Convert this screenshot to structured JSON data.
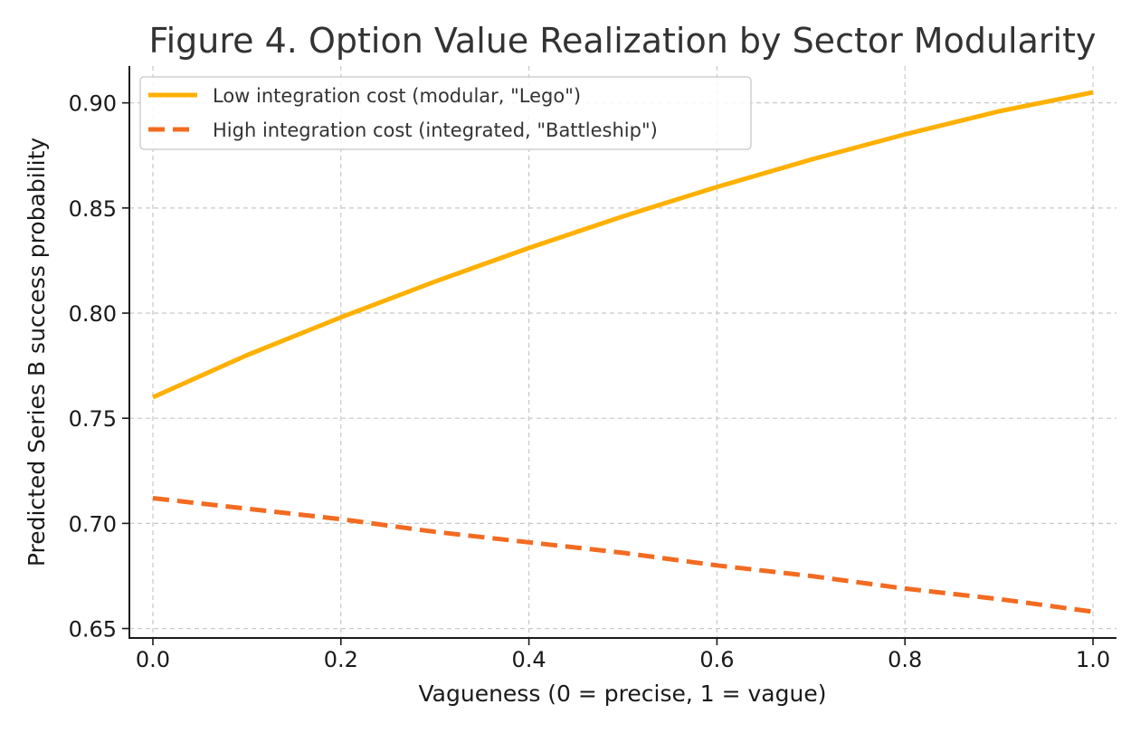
{
  "chart_data": {
    "type": "line",
    "title": "Figure 4. Option Value Realization by Sector Modularity",
    "xlabel": "Vagueness (0 = precise, 1 = vague)",
    "ylabel": "Predicted Series B success probability",
    "xlim": [
      -0.025,
      1.025
    ],
    "ylim": [
      0.6455,
      0.9175
    ],
    "x_ticks": [
      0.0,
      0.2,
      0.4,
      0.6,
      0.8,
      1.0
    ],
    "x_tick_labels": [
      "0.0",
      "0.2",
      "0.4",
      "0.6",
      "0.8",
      "1.0"
    ],
    "y_ticks": [
      0.65,
      0.7,
      0.75,
      0.8,
      0.85,
      0.9
    ],
    "y_tick_labels": [
      "0.65",
      "0.70",
      "0.75",
      "0.80",
      "0.85",
      "0.90"
    ],
    "grid": true,
    "legend_position": "top-left",
    "x": [
      0.0,
      0.1,
      0.2,
      0.3,
      0.4,
      0.5,
      0.6,
      0.7,
      0.8,
      0.9,
      1.0
    ],
    "series": [
      {
        "name": "Low integration cost (modular, \"Lego\")",
        "color": "#FFB000",
        "line_style": "solid",
        "values": [
          0.76,
          0.78,
          0.798,
          0.815,
          0.831,
          0.846,
          0.86,
          0.873,
          0.885,
          0.896,
          0.905
        ]
      },
      {
        "name": "High integration cost (integrated, \"Battleship\")",
        "color": "#F26B21",
        "line_style": "dashed",
        "values": [
          0.712,
          0.707,
          0.702,
          0.696,
          0.691,
          0.686,
          0.68,
          0.675,
          0.669,
          0.664,
          0.658
        ]
      }
    ]
  }
}
